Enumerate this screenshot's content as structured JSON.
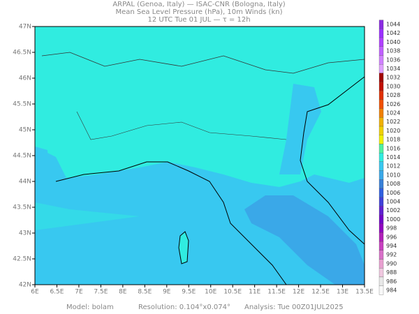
{
  "header": {
    "line1": "ARPAL (Genoa, Italy)  —  ISAC-CNR (Bologna, Italy)",
    "line2": "Mean Sea Level Pressure (hPa), 10m Winds (kn)",
    "line3": "12 UTC Tue 01 JUL  —  τ = 12h"
  },
  "map": {
    "x_labels": [
      "6E",
      "6.5E",
      "7E",
      "7.5E",
      "8E",
      "8.5E",
      "9E",
      "9.5E",
      "10E",
      "10.5E",
      "11E",
      "11.5E",
      "12E",
      "12.5E",
      "13E",
      "13.5E"
    ],
    "y_labels": [
      "42N",
      "42.5N",
      "43N",
      "43.5N",
      "44N",
      "44.5N",
      "45N",
      "45.5N",
      "46N",
      "46.5N",
      "47N"
    ]
  },
  "colorbar": {
    "levels": [
      1044,
      1042,
      1040,
      1038,
      1036,
      1034,
      1032,
      1030,
      1028,
      1026,
      1024,
      1022,
      1020,
      1018,
      1016,
      1014,
      1012,
      1010,
      1008,
      1006,
      1004,
      1002,
      1000,
      998,
      996,
      994,
      992,
      990,
      988,
      986,
      984
    ],
    "colors": [
      "#8a2be2",
      "#9b30ff",
      "#b040ff",
      "#c060ff",
      "#d080ff",
      "#e0a0ff",
      "#a00000",
      "#c01000",
      "#e03000",
      "#f05000",
      "#f08000",
      "#f0b000",
      "#f0d000",
      "#f0f000",
      "#50f0a0",
      "#30ece0",
      "#38c8f0",
      "#3aa8e8",
      "#3880d8",
      "#3060e0",
      "#4040d8",
      "#6020d0",
      "#7000c8",
      "#9000c0",
      "#b020b8",
      "#c840c0",
      "#d870c8",
      "#e8a0d0",
      "#f0c8e0",
      "#e8e8e8",
      "#f8f8f8"
    ]
  },
  "footer": {
    "model": "Model: bolam",
    "resolution": "Resolution: 0.104°x0.074°",
    "analysis": "Analysis: Tue 00Z01JUL2025"
  }
}
